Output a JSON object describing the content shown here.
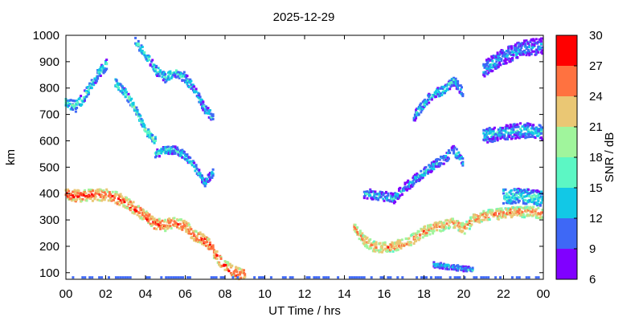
{
  "chart_data": {
    "type": "heatmap",
    "title": "2025-12-29",
    "xlabel": "UT Time / hrs",
    "ylabel": "km",
    "colorbar_label": "SNR / dB",
    "xlim": [
      0,
      24
    ],
    "ylim": [
      75,
      1000
    ],
    "x_ticks": [
      "00",
      "02",
      "04",
      "06",
      "08",
      "10",
      "12",
      "14",
      "16",
      "18",
      "20",
      "22",
      "00"
    ],
    "y_ticks": [
      100,
      200,
      300,
      400,
      500,
      600,
      700,
      800,
      900,
      1000
    ],
    "colorbar": {
      "range": [
        6,
        30
      ],
      "ticks": [
        6,
        9,
        12,
        15,
        18,
        21,
        24,
        27,
        30
      ],
      "bins": [
        {
          "from": 6,
          "to": 9,
          "color": "#8000ff"
        },
        {
          "from": 9,
          "to": 12,
          "color": "#3e68f6"
        },
        {
          "from": 12,
          "to": 15,
          "color": "#12c8e6"
        },
        {
          "from": 15,
          "to": 18,
          "color": "#5cf7c4"
        },
        {
          "from": 18,
          "to": 21,
          "color": "#a0f59c"
        },
        {
          "from": 21,
          "to": 24,
          "color": "#eac774"
        },
        {
          "from": 24,
          "to": 27,
          "color": "#ff7240"
        },
        {
          "from": 27,
          "to": 30,
          "color": "#ff0000"
        }
      ]
    },
    "series": [
      {
        "points": [
          [
            0,
            395
          ],
          [
            0.5,
            392
          ],
          [
            1,
            392
          ],
          [
            1.5,
            395
          ],
          [
            2,
            395
          ],
          [
            2.5,
            385
          ],
          [
            3,
            368
          ],
          [
            3.5,
            340
          ],
          [
            4,
            315
          ],
          [
            4.5,
            285
          ],
          [
            5,
            280
          ],
          [
            5.5,
            288
          ],
          [
            6,
            275
          ],
          [
            6.5,
            240
          ],
          [
            7,
            220
          ],
          [
            7.3,
            200
          ],
          [
            7.5,
            170
          ],
          [
            8,
            125
          ],
          [
            8.5,
            100
          ],
          [
            9,
            90
          ]
        ],
        "snr": 24,
        "spread": 22
      },
      {
        "points": [
          [
            14.5,
            270
          ],
          [
            15,
            220
          ],
          [
            15.5,
            200
          ],
          [
            16,
            195
          ],
          [
            16.5,
            200
          ],
          [
            17,
            210
          ],
          [
            17.5,
            230
          ],
          [
            18,
            255
          ],
          [
            18.5,
            270
          ],
          [
            19,
            280
          ],
          [
            19.5,
            290
          ],
          [
            20,
            265
          ],
          [
            20.5,
            300
          ],
          [
            21,
            315
          ],
          [
            21.5,
            320
          ],
          [
            22,
            325
          ],
          [
            22.5,
            330
          ],
          [
            23,
            330
          ],
          [
            23.5,
            330
          ],
          [
            24,
            325
          ]
        ],
        "snr": 22,
        "spread": 20
      },
      {
        "points": [
          [
            0,
            745
          ],
          [
            0.5,
            730
          ],
          [
            1,
            775
          ],
          [
            1.5,
            840
          ],
          [
            2,
            885
          ],
          [
            2.1,
            900
          ]
        ],
        "snr": 13,
        "spread": 20
      },
      {
        "points": [
          [
            2.5,
            820
          ],
          [
            3,
            780
          ],
          [
            3.5,
            720
          ],
          [
            4,
            640
          ],
          [
            4.5,
            600
          ]
        ],
        "snr": 14,
        "spread": 15
      },
      {
        "points": [
          [
            3.5,
            980
          ],
          [
            4,
            930
          ],
          [
            4.5,
            870
          ],
          [
            5,
            840
          ],
          [
            5.5,
            860
          ],
          [
            6,
            840
          ],
          [
            6.5,
            790
          ],
          [
            7,
            720
          ],
          [
            7.4,
            690
          ]
        ],
        "snr": 12,
        "spread": 18
      },
      {
        "points": [
          [
            4.5,
            550
          ],
          [
            5,
            565
          ],
          [
            5.5,
            565
          ],
          [
            6,
            545
          ],
          [
            6.5,
            500
          ],
          [
            7,
            440
          ],
          [
            7.4,
            480
          ]
        ],
        "snr": 12,
        "spread": 15
      },
      {
        "points": [
          [
            15,
            400
          ],
          [
            16,
            390
          ],
          [
            16.5,
            380
          ],
          [
            17,
            420
          ],
          [
            18,
            480
          ],
          [
            19,
            530
          ],
          [
            19.5,
            565
          ],
          [
            20,
            520
          ]
        ],
        "snr": 11,
        "spread": 18
      },
      {
        "points": [
          [
            17.5,
            690
          ],
          [
            18,
            740
          ],
          [
            18.5,
            780
          ],
          [
            19,
            790
          ],
          [
            19.5,
            830
          ],
          [
            20,
            780
          ]
        ],
        "snr": 12,
        "spread": 18
      },
      {
        "points": [
          [
            21,
            620
          ],
          [
            22,
            630
          ],
          [
            23,
            640
          ],
          [
            24,
            630
          ]
        ],
        "snr": 11,
        "spread": 28
      },
      {
        "points": [
          [
            21,
            870
          ],
          [
            22,
            920
          ],
          [
            23,
            950
          ],
          [
            24,
            960
          ]
        ],
        "snr": 10,
        "spread": 30
      },
      {
        "points": [
          [
            22,
            390
          ],
          [
            23,
            390
          ],
          [
            24,
            380
          ]
        ],
        "snr": 13,
        "spread": 28
      },
      {
        "points": [
          [
            18.5,
            130
          ],
          [
            19.5,
            120
          ],
          [
            20.5,
            110
          ]
        ],
        "snr": 11,
        "spread": 10
      }
    ]
  }
}
